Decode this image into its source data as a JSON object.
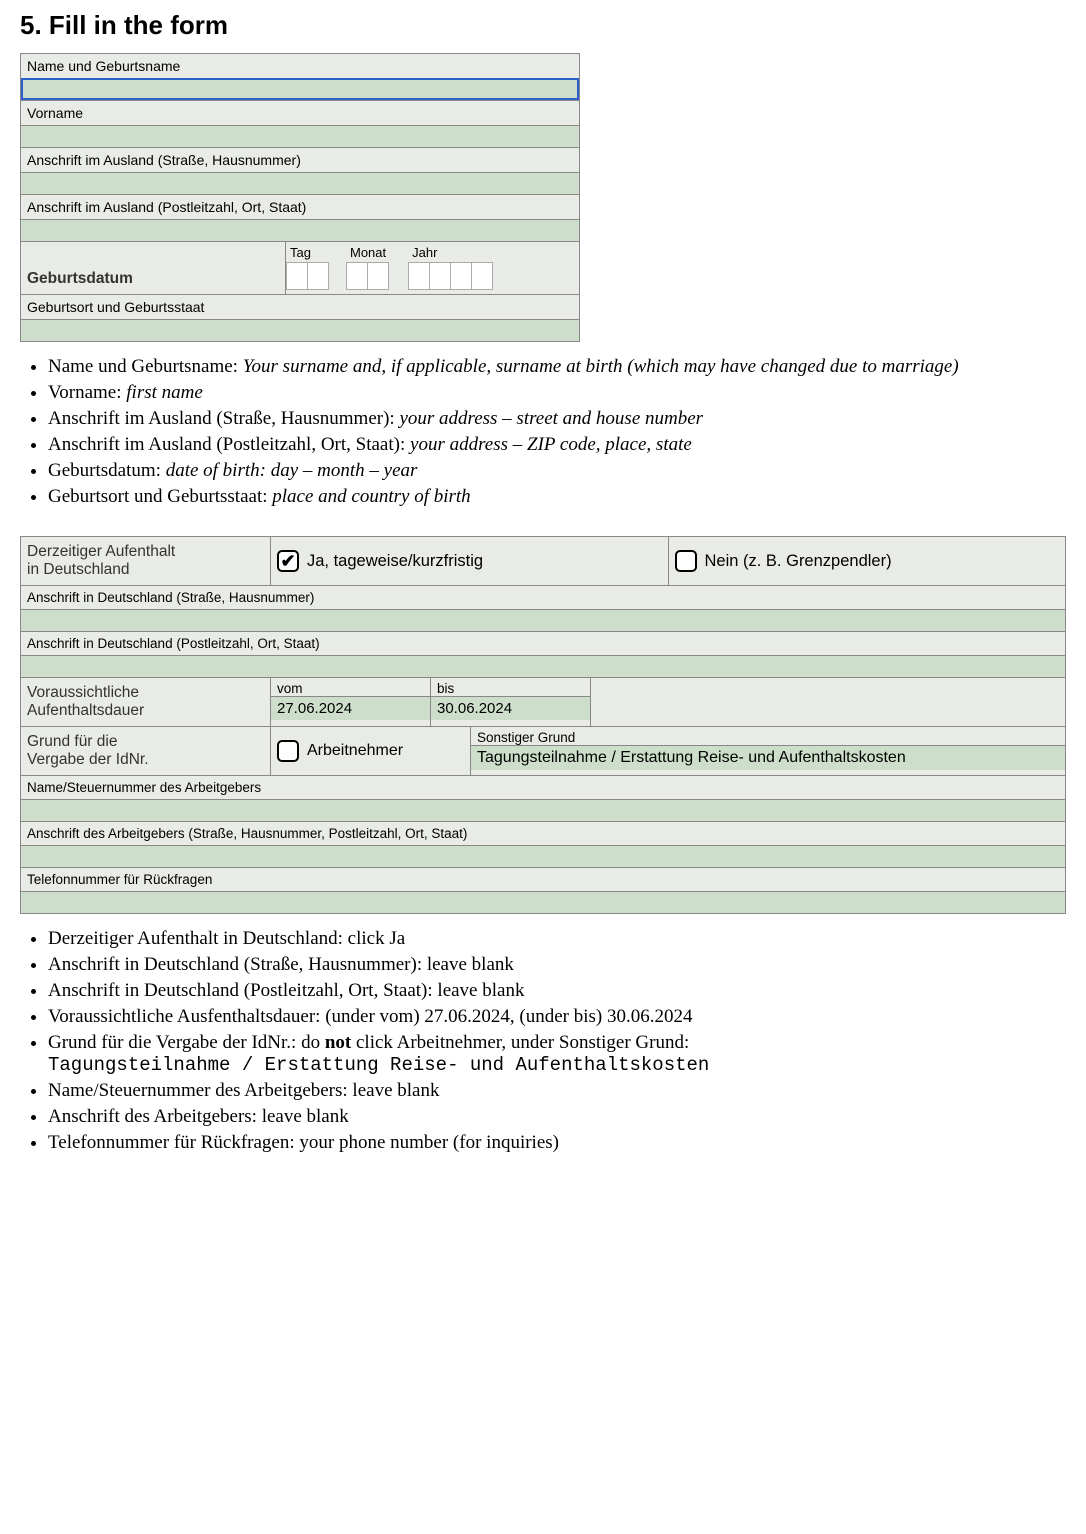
{
  "heading": "5. Fill in the form",
  "form1": {
    "f1_label": "Name und Geburtsname",
    "f2_label": "Vorname",
    "f3_label": "Anschrift im Ausland (Straße, Hausnummer)",
    "f4_label": "Anschrift im Ausland (Postleitzahl, Ort, Staat)",
    "f5_label": "Geburtsdatum",
    "f5_tag": "Tag",
    "f5_monat": "Monat",
    "f5_jahr": "Jahr",
    "f6_label": "Geburtsort und Geburtsstaat"
  },
  "list1": [
    {
      "term": "Name und Geburtsname: ",
      "desc": "Your surname and, if applicable, surname at birth (which may have changed due to marriage)"
    },
    {
      "term": "Vorname: ",
      "desc": "first name"
    },
    {
      "term": "Anschrift im Ausland (Straße, Hausnummer): ",
      "desc": "your address – street and house number"
    },
    {
      "term": "Anschrift im Ausland (Postleitzahl, Ort, Staat): ",
      "desc": "your address – ZIP code, place, state"
    },
    {
      "term": "Geburtsdatum: ",
      "desc": "date of birth: day – month – year"
    },
    {
      "term": "Geburtsort und Geburtsstaat: ",
      "desc": "place and country of birth"
    }
  ],
  "form2": {
    "r1_label_l1": "Derzeitiger Aufenthalt",
    "r1_label_l2": "in Deutschland",
    "r1_yes": "Ja, tageweise/kurzfristig",
    "r1_no": "Nein (z. B. Grenzpendler)",
    "r2_label": "Anschrift in Deutschland (Straße, Hausnummer)",
    "r3_label": "Anschrift in Deutschland (Postleitzahl, Ort, Staat)",
    "r4_label_l1": "Voraussichtliche",
    "r4_label_l2": "Aufenthaltsdauer",
    "r4_vom_label": "vom",
    "r4_vom_val": "27.06.2024",
    "r4_bis_label": "bis",
    "r4_bis_val": "30.06.2024",
    "r5_label_l1": "Grund für die",
    "r5_label_l2": "Vergabe der IdNr.",
    "r5_arbeitnehmer": "Arbeitnehmer",
    "r5_sonstiger_label": "Sonstiger Grund",
    "r5_sonstiger_val": "Tagungsteilnahme / Erstattung Reise- und Aufenthaltskosten",
    "r6_label": "Name/Steuernummer des Arbeitgebers",
    "r7_label": "Anschrift des Arbeitgebers (Straße, Hausnummer, Postleitzahl, Ort, Staat)",
    "r8_label": "Telefonnummer für Rückfragen"
  },
  "list2": {
    "i1": "Derzeitiger Aufenthalt in Deutschland: click Ja",
    "i2": "Anschrift in Deutschland (Straße, Hausnummer): leave blank",
    "i3": "Anschrift in Deutschland (Postleitzahl, Ort, Staat): leave blank",
    "i4": "Voraussichtliche Ausfenthaltsdauer: (under vom) 27.06.2024, (under bis) 30.06.2024",
    "i5a": "Grund für die Vergabe der IdNr.: do ",
    "i5b": "not",
    "i5c": " click Arbeitnehmer, under Sonstiger Grund: ",
    "i5d": "Tagungsteilnahme / Erstattung Reise- und Aufenthaltskosten",
    "i6": "Name/Steuernummer des Arbeitgebers: leave blank",
    "i7": "Anschrift des Arbeitgebers: leave blank",
    "i8": "Telefonnummer für Rückfragen: your phone number (for inquiries)"
  },
  "checkmark": "✔"
}
